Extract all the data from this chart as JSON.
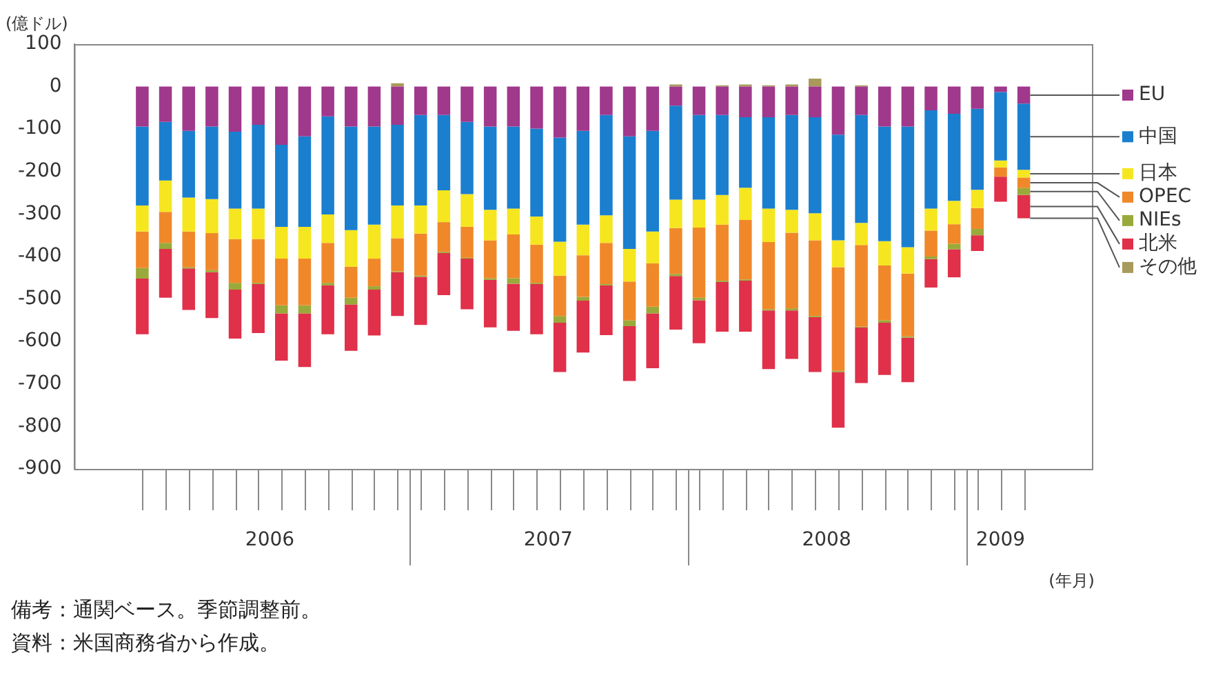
{
  "chart_data": {
    "type": "bar",
    "stacked": true,
    "ylabel": "(億ドル)",
    "xlabel": "(年月)",
    "x": [
      "2006-01",
      "2006-02",
      "2006-03",
      "2006-04",
      "2006-05",
      "2006-06",
      "2006-07",
      "2006-08",
      "2006-09",
      "2006-10",
      "2006-11",
      "2006-12",
      "2007-01",
      "2007-02",
      "2007-03",
      "2007-04",
      "2007-05",
      "2007-06",
      "2007-07",
      "2007-08",
      "2007-09",
      "2007-10",
      "2007-11",
      "2007-12",
      "2008-01",
      "2008-02",
      "2008-03",
      "2008-04",
      "2008-05",
      "2008-06",
      "2008-07",
      "2008-08",
      "2008-09",
      "2008-10",
      "2008-11",
      "2008-12",
      "2009-01",
      "2009-02",
      "2009-03"
    ],
    "xlim": [
      "2005-12-16",
      "2009-03-16"
    ],
    "xticks": [
      {
        "value": "2006-06-16",
        "label": "2006"
      },
      {
        "value": "2007-06-16",
        "label": "2007"
      },
      {
        "value": "2008-06-16",
        "label": "2008"
      },
      {
        "value": "2009-02",
        "label": "2009"
      }
    ],
    "ylim": [
      -900,
      100
    ],
    "yticks": [
      -900,
      -800,
      -700,
      -600,
      -500,
      -400,
      -300,
      -200,
      -100,
      0,
      100
    ],
    "grid": false,
    "legend": "right",
    "series": [
      {
        "name": "EU",
        "color": "#a0388c",
        "values": [
          -94,
          -83,
          -104,
          -94,
          -106,
          -90,
          -137,
          -117,
          -70,
          -94,
          -94,
          -90,
          -67,
          -67,
          -83,
          -94,
          -94,
          -99,
          -120,
          -104,
          -67,
          -117,
          -104,
          -45,
          -67,
          -67,
          -72,
          -72,
          -67,
          -72,
          -113,
          -67,
          -94,
          -94,
          -56,
          -64,
          -52,
          -13,
          -40
        ]
      },
      {
        "name": "中国",
        "color": "#1a7fcf",
        "values": [
          -186,
          -138,
          -157,
          -171,
          -181,
          -197,
          -193,
          -213,
          -231,
          -244,
          -231,
          -190,
          -213,
          -177,
          -170,
          -196,
          -193,
          -207,
          -245,
          -221,
          -236,
          -265,
          -237,
          -221,
          -199,
          -188,
          -166,
          -215,
          -223,
          -226,
          -249,
          -254,
          -270,
          -284,
          -231,
          -205,
          -191,
          -161,
          -156
        ]
      },
      {
        "name": "日本",
        "color": "#f6e620",
        "values": [
          -61,
          -74,
          -80,
          -80,
          -72,
          -72,
          -75,
          -75,
          -67,
          -86,
          -80,
          -77,
          -66,
          -75,
          -77,
          -72,
          -61,
          -66,
          -80,
          -72,
          -65,
          -77,
          -75,
          -67,
          -66,
          -70,
          -76,
          -79,
          -54,
          -64,
          -63,
          -52,
          -57,
          -62,
          -52,
          -55,
          -43,
          -16,
          -18
        ]
      },
      {
        "name": "OPEC",
        "color": "#f0882a",
        "values": [
          -86,
          -73,
          -84,
          -87,
          -103,
          -103,
          -110,
          -110,
          -94,
          -73,
          -65,
          -78,
          -99,
          -70,
          -73,
          -89,
          -103,
          -90,
          -95,
          -98,
          -97,
          -91,
          -102,
          -108,
          -165,
          -132,
          -140,
          -158,
          -178,
          -178,
          -244,
          -192,
          -129,
          -148,
          -61,
          -46,
          -49,
          -22,
          -25
        ]
      },
      {
        "name": "NIEs",
        "color": "#9aaa3a",
        "values": [
          -25,
          -14,
          -3,
          -5,
          -16,
          -3,
          -19,
          -19,
          -6,
          -16,
          -8,
          -2,
          -3,
          -3,
          -2,
          -4,
          -13,
          -3,
          -16,
          -9,
          -3,
          -14,
          -16,
          -5,
          -6,
          -3,
          -3,
          -3,
          -5,
          -3,
          -3,
          -2,
          -6,
          -3,
          -6,
          -13,
          -15,
          0,
          -16
        ]
      },
      {
        "name": "北米",
        "color": "#e0304a",
        "values": [
          -131,
          -115,
          -98,
          -108,
          -115,
          -115,
          -111,
          -126,
          -115,
          -109,
          -108,
          -103,
          -113,
          -99,
          -119,
          -112,
          -111,
          -118,
          -116,
          -122,
          -117,
          -129,
          -129,
          -126,
          -101,
          -117,
          -120,
          -138,
          -114,
          -129,
          -131,
          -131,
          -123,
          -105,
          -67,
          -66,
          -37,
          -59,
          -55
        ]
      },
      {
        "name": "その他",
        "color": "#a89a5a",
        "values": [
          0,
          0,
          0,
          0,
          0,
          0,
          0,
          0,
          0,
          0,
          0,
          8,
          0,
          0,
          0,
          0,
          0,
          0,
          0,
          0,
          0,
          0,
          0,
          5,
          0,
          3,
          5,
          3,
          5,
          19,
          0,
          3,
          0,
          0,
          0,
          0,
          0,
          0,
          0
        ]
      }
    ],
    "annotations": [
      "備考：通関ベース。季節調整前。",
      "資料：米国商務省から作成。"
    ]
  }
}
